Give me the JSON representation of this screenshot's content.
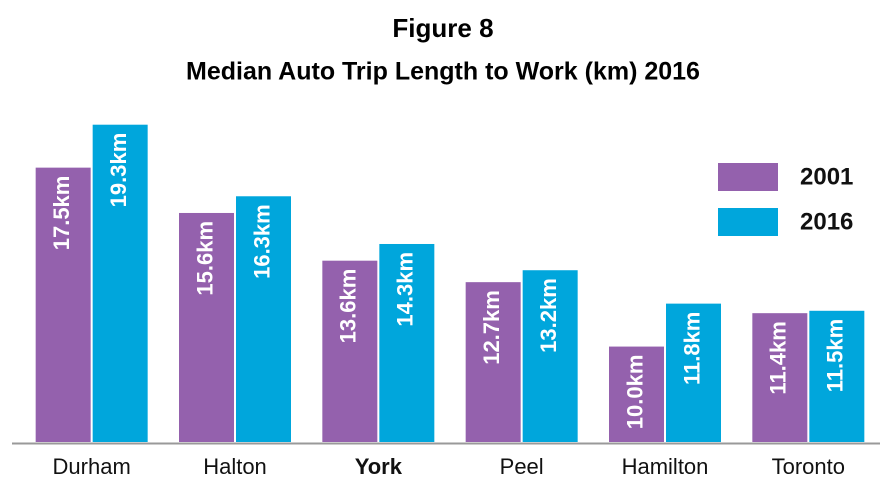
{
  "chart_data": {
    "type": "bar",
    "title": "Figure 8",
    "subtitle": "Median Auto Trip Length to Work (km) 2016",
    "categories": [
      "Durham",
      "Halton",
      "York",
      "Peel",
      "Hamilton",
      "Toronto"
    ],
    "highlight": "York",
    "series": [
      {
        "name": "2001",
        "color": "#9461ad",
        "values": [
          17.5,
          15.6,
          13.6,
          12.7,
          10.0,
          11.4
        ],
        "value_labels": [
          "17.5km",
          "15.6km",
          "13.6km",
          "12.7km",
          "10.0km",
          "11.4km"
        ]
      },
      {
        "name": "2016",
        "color": "#00a6dc",
        "values": [
          19.3,
          16.3,
          14.3,
          13.2,
          11.8,
          11.5
        ],
        "value_labels": [
          "19.3km",
          "16.3km",
          "14.3km",
          "13.2km",
          "11.8km",
          "11.5km"
        ]
      }
    ],
    "ylim": [
      6,
      20
    ],
    "legend": "upper right"
  }
}
